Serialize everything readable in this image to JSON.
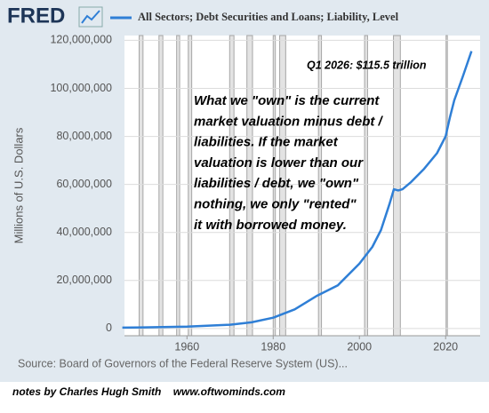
{
  "chart_data": {
    "type": "line",
    "logo": "FRED",
    "series": [
      {
        "name": "All Sectors; Debt Securities and Loans; Liability, Level",
        "color": "#2f7fd6",
        "values": [
          355000,
          480000,
          800000,
          1600000,
          2600000,
          4500000,
          8000000,
          13500000,
          18000000,
          27000000,
          34000000,
          41000000,
          52000000,
          58000000,
          57500000,
          58000000,
          61000000,
          66500000,
          73000000,
          80000000,
          88000000,
          95000000,
          105000000,
          115500000
        ]
      }
    ],
    "x": [
      1945,
      1950,
      1960,
      1970,
      1975,
      1980,
      1985,
      1990,
      1995,
      2000,
      2003,
      2005,
      2007,
      2008,
      2009,
      2010,
      2012,
      2015,
      2018,
      2020,
      2021,
      2022,
      2024,
      2026
    ],
    "xlim": [
      1945.5,
      2028
    ],
    "xticks": [
      1960,
      1980,
      2000,
      2020
    ],
    "ylim": [
      -3000000,
      122000000
    ],
    "yticks": [
      0,
      {
        "value": 20000000,
        "label": "20,000,000"
      },
      {
        "value": 40000000,
        "label": "40,000,000"
      },
      {
        "value": 60000000,
        "label": "60,000,000"
      },
      {
        "value": 80000000,
        "label": "80,000,000"
      },
      {
        "value": 100000000,
        "label": "100,000,000"
      },
      {
        "value": 120000000,
        "label": "120,000,000"
      }
    ],
    "y_label": "Millions of U.S. Dollars",
    "grid": true,
    "shaded_periods": [
      [
        1948.9,
        1949.8
      ],
      [
        1953.5,
        1954.4
      ],
      [
        1957.6,
        1958.3
      ],
      [
        1960.3,
        1961.1
      ],
      [
        1969.9,
        1970.9
      ],
      [
        1973.9,
        1975.2
      ],
      [
        1980.0,
        1980.5
      ],
      [
        1981.5,
        1982.9
      ],
      [
        1990.5,
        1991.2
      ],
      [
        2001.2,
        2001.9
      ],
      [
        2007.9,
        2009.5
      ],
      [
        2020.1,
        2020.4
      ]
    ],
    "annotation_value": "Q1 2026: $115.5 trillion",
    "annotation_note": [
      "What we \"own\" is the current",
      "market valuation minus debt /",
      "liabilities.  If the market",
      "valuation is lower than our",
      "liabilities / debt, we \"own\"",
      "nothing, we only \"rented\"",
      "it with borrowed money."
    ],
    "source": "Source: Board of Governors of the Federal Reserve System (US)...",
    "footer": "notes by Charles Hugh Smith    www.oftwominds.com"
  }
}
